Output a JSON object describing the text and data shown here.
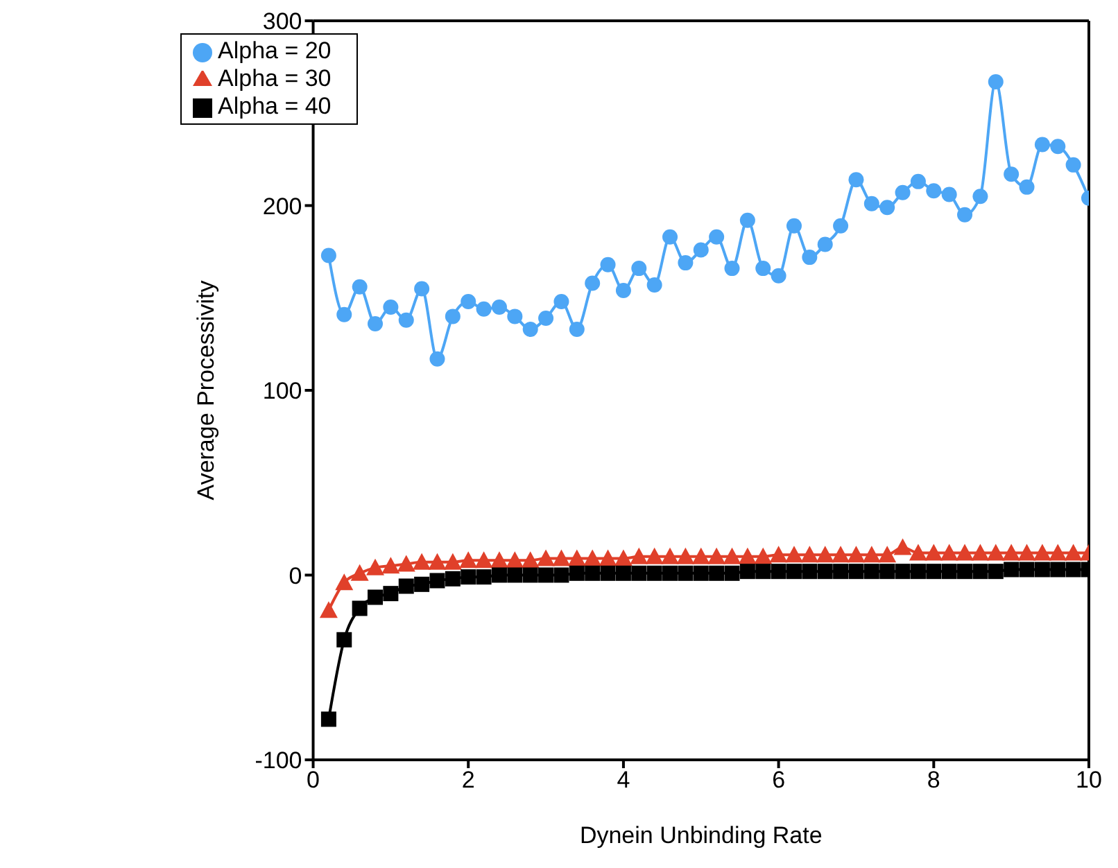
{
  "chart_data": {
    "type": "line",
    "xlabel": "Dynein Unbinding Rate",
    "ylabel": "Average Processivity",
    "x": [
      0.2,
      0.4,
      0.6,
      0.8,
      1.0,
      1.2,
      1.4,
      1.6,
      1.8,
      2.0,
      2.2,
      2.4,
      2.6,
      2.8,
      3.0,
      3.2,
      3.4,
      3.6,
      3.8,
      4.0,
      4.2,
      4.4,
      4.6,
      4.8,
      5.0,
      5.2,
      5.4,
      5.6,
      5.8,
      6.0,
      6.2,
      6.4,
      6.6,
      6.8,
      7.0,
      7.2,
      7.4,
      7.6,
      7.8,
      8.0,
      8.2,
      8.4,
      8.6,
      8.8,
      9.0,
      9.2,
      9.4,
      9.6,
      9.8,
      10.0
    ],
    "series": [
      {
        "name": "Alpha = 20",
        "color": "#4da6f5",
        "marker": "circle",
        "values": [
          173,
          141,
          156,
          136,
          145,
          138,
          155,
          117,
          140,
          148,
          144,
          145,
          140,
          133,
          139,
          148,
          133,
          158,
          168,
          154,
          166,
          157,
          183,
          169,
          176,
          183,
          166,
          192,
          166,
          162,
          189,
          172,
          179,
          189,
          214,
          201,
          199,
          207,
          213,
          208,
          206,
          195,
          205,
          267,
          217,
          210,
          233,
          232,
          222,
          204
        ]
      },
      {
        "name": "Alpha = 30",
        "color": "#e0402a",
        "marker": "triangle",
        "values": [
          -19,
          -4,
          1,
          4,
          5,
          6,
          7,
          7,
          7,
          8,
          8,
          8,
          8,
          8,
          9,
          9,
          9,
          9,
          9,
          9,
          10,
          10,
          10,
          10,
          10,
          10,
          10,
          10,
          10,
          11,
          11,
          11,
          11,
          11,
          11,
          11,
          11,
          15,
          12,
          12,
          12,
          12,
          12,
          12,
          12,
          12,
          12,
          12,
          12,
          12
        ]
      },
      {
        "name": "Alpha = 40",
        "color": "#000000",
        "marker": "square",
        "values": [
          -78,
          -35,
          -18,
          -12,
          -10,
          -6,
          -5,
          -3,
          -2,
          -1,
          -1,
          0,
          0,
          0,
          0,
          0,
          1,
          1,
          1,
          1,
          1,
          1,
          1,
          1,
          1,
          1,
          1,
          2,
          2,
          2,
          2,
          2,
          2,
          2,
          2,
          2,
          2,
          2,
          2,
          2,
          2,
          2,
          2,
          2,
          3,
          3,
          3,
          3,
          3,
          3
        ]
      }
    ],
    "xlim": [
      0,
      10
    ],
    "xticks": [
      0,
      2,
      4,
      6,
      8,
      10
    ],
    "ylim": [
      -100,
      300
    ],
    "yticks": [
      -100,
      0,
      100,
      200,
      300
    ],
    "grid": false,
    "legend": "top left"
  }
}
